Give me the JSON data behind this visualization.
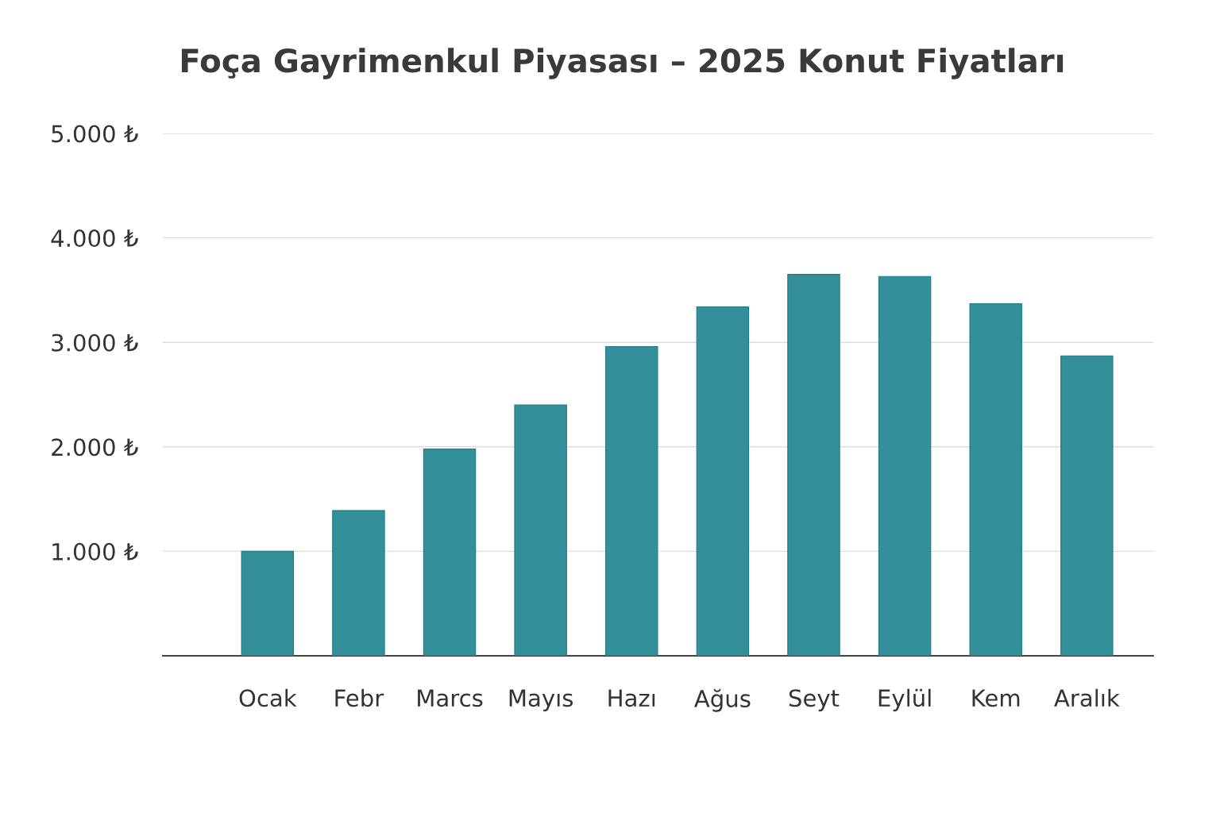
{
  "chart_data": {
    "type": "bar",
    "title": "Foça Gayrimenkul Piyasası – 2025 Konut Fiyatları",
    "categories": [
      "Ocak",
      "Febr",
      "Marcs",
      "Mayıs",
      "Hazı",
      "Ağus",
      "Seyt",
      "Eylül",
      "Kem",
      "Aralık"
    ],
    "values": [
      1000,
      1390,
      1980,
      2400,
      2960,
      3340,
      3650,
      3630,
      3370,
      2870
    ],
    "color": "#338f99",
    "ylim": [
      0,
      5000
    ],
    "yticks": [
      {
        "value": 1000,
        "label": "1.000 ₺"
      },
      {
        "value": 2000,
        "label": "2.000 ₺"
      },
      {
        "value": 3000,
        "label": "3.000 ₺"
      },
      {
        "value": 4000,
        "label": "4.000 ₺"
      },
      {
        "value": 5000,
        "label": "5.000 ₺"
      }
    ],
    "grid": "y"
  }
}
